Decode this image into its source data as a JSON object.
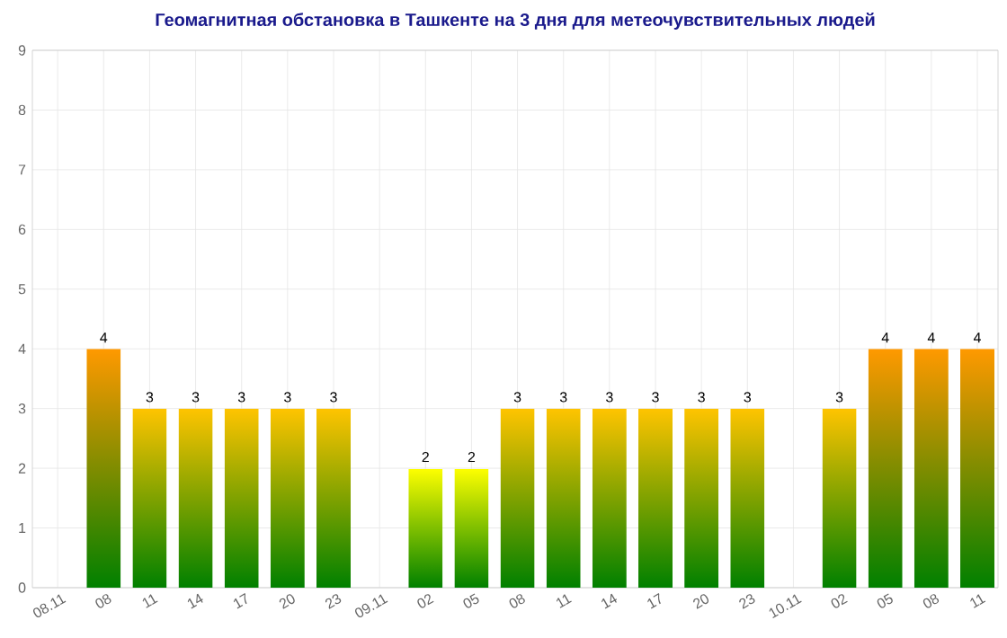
{
  "chart_data": {
    "type": "bar",
    "title": "Геомагнитная обстановка в Ташкенте на 3 дня для метеочувствительных людей",
    "categories": [
      "08.11",
      "08",
      "11",
      "14",
      "17",
      "20",
      "23",
      "09.11",
      "02",
      "05",
      "08",
      "11",
      "14",
      "17",
      "20",
      "23",
      "10.11",
      "02",
      "05",
      "08",
      "11"
    ],
    "values": [
      null,
      4,
      3,
      3,
      3,
      3,
      3,
      null,
      2,
      2,
      3,
      3,
      3,
      3,
      3,
      3,
      null,
      3,
      4,
      4,
      4
    ],
    "colors": [
      "#ff9900",
      "#ff9900",
      "#ffc400",
      "#ffc400",
      "#ffc400",
      "#ffc400",
      "#ffc400",
      "#ffc400",
      "#ffff00",
      "#ffff00",
      "#ffc400",
      "#ffc400",
      "#ffc400",
      "#ffc400",
      "#ffc400",
      "#ffc400",
      "#ffc400",
      "#ffc400",
      "#ff9900",
      "#ff9900",
      "#ff9900"
    ],
    "ylim": [
      0,
      9
    ],
    "yticks": [
      0,
      1,
      2,
      3,
      4,
      5,
      6,
      7,
      8,
      9
    ],
    "grid": true,
    "data_labels": true
  }
}
